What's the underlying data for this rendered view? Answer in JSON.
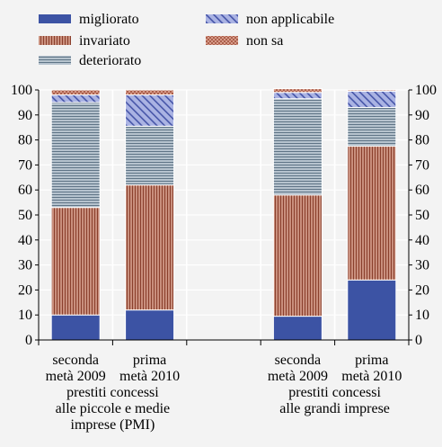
{
  "chart_data": {
    "type": "bar",
    "stacked": true,
    "ylim": [
      0,
      100
    ],
    "yticks": [
      0,
      10,
      20,
      30,
      40,
      50,
      60,
      70,
      80,
      90,
      100
    ],
    "grid": true,
    "legend_position": "top-left",
    "groups": [
      {
        "label": "prestiti concessi alle piccole e medie imprese (PMI)",
        "label_lines": [
          "prestiti concessi",
          "alle piccole e medie",
          "imprese (PMI)"
        ],
        "categories": [
          {
            "label": "seconda metà 2009",
            "label_lines": [
              "seconda",
              "metà 2009"
            ]
          },
          {
            "label": "prima metà 2010",
            "label_lines": [
              "prima",
              "metà 2010"
            ]
          }
        ]
      },
      {
        "label": "prestiti concessi alle grandi imprese",
        "label_lines": [
          "prestiti concessi",
          "alle grandi imprese"
        ],
        "categories": [
          {
            "label": "seconda metà 2009",
            "label_lines": [
              "seconda",
              "metà 2009"
            ]
          },
          {
            "label": "prima metà 2010",
            "label_lines": [
              "prima",
              "metà 2010"
            ]
          }
        ]
      }
    ],
    "series": [
      {
        "name": "migliorato",
        "color": "#3c53a4",
        "pattern": "solid",
        "values": [
          10,
          12,
          9.5,
          24
        ]
      },
      {
        "name": "invariato",
        "color": "#c98f7d",
        "pattern": "vertical-lines",
        "values": [
          43,
          50,
          48.5,
          53.5
        ]
      },
      {
        "name": "deteriorato",
        "color": "#a6b6c3",
        "pattern": "horizontal-lines",
        "values": [
          42,
          23.5,
          38.5,
          15.5
        ]
      },
      {
        "name": "non applicabile",
        "color": "#8f9bd6",
        "pattern": "diagonal-lines",
        "values": [
          3,
          12.5,
          2.5,
          6.5
        ]
      },
      {
        "name": "non sa",
        "color": "#d59a8a",
        "pattern": "cross-hatch",
        "values": [
          2,
          2,
          1.5,
          0.5
        ]
      }
    ]
  }
}
